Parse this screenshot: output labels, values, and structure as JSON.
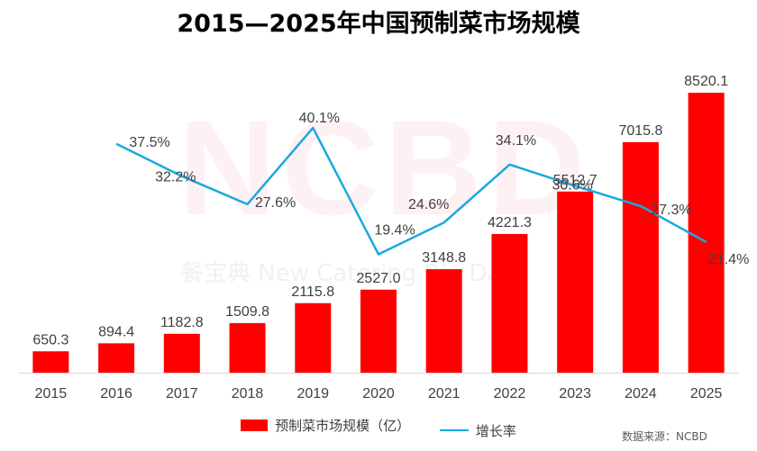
{
  "chart_data": {
    "type": "bar",
    "title": "2015—2025年中国预制菜市场规模",
    "categories": [
      "2015",
      "2016",
      "2017",
      "2018",
      "2019",
      "2020",
      "2021",
      "2022",
      "2023",
      "2024",
      "2025"
    ],
    "series": [
      {
        "name": "预制菜市场规模（亿）",
        "type": "bar",
        "axis": "left",
        "color": "#ff0000",
        "values": [
          650.3,
          894.4,
          1182.8,
          1509.8,
          2115.8,
          2527.0,
          3148.8,
          4221.3,
          5512.7,
          7015.8,
          8520.1
        ],
        "labels": [
          "650.3",
          "894.4",
          "1182.8",
          "1509.8",
          "2115.8",
          "2527.0",
          "3148.8",
          "4221.3",
          "5512.7",
          "7015.8",
          "8520.1"
        ]
      },
      {
        "name": "增长率",
        "type": "line",
        "axis": "right",
        "color": "#1aa9df",
        "values": [
          null,
          37.5,
          32.2,
          27.6,
          40.1,
          19.4,
          24.6,
          34.1,
          30.6,
          27.3,
          21.4
        ],
        "labels": [
          "",
          "37.5%",
          "32.2%",
          "27.6%",
          "40.1%",
          "19.4%",
          "24.6%",
          "34.1%",
          "30.6%",
          "27.3%",
          "21.4%"
        ]
      }
    ],
    "ylim_left": [
      0,
      8520.1
    ],
    "ylim_right": [
      0,
      50
    ],
    "legend_position": "bottom",
    "grid": false
  },
  "watermark": {
    "logo": "NCBD",
    "text": "餐宝典 New Catering Big Data"
  },
  "source": "数据来源：NCBD"
}
